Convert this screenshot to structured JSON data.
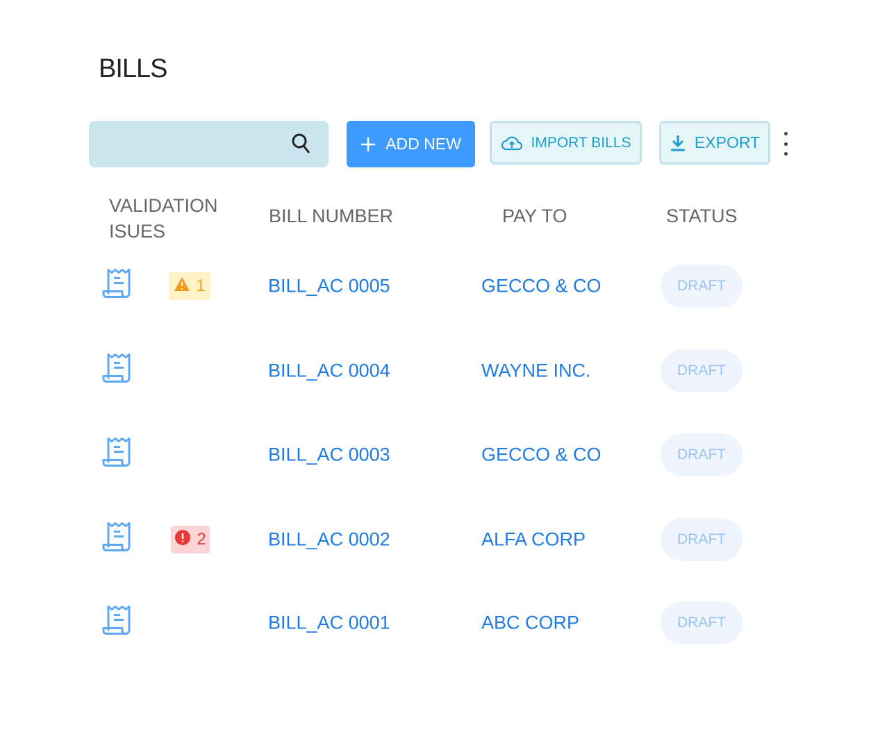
{
  "page": {
    "title": "BILLS"
  },
  "toolbar": {
    "search_value": "",
    "add_label": "ADD NEW",
    "import_label": "IMPORT BILLS",
    "export_label": "EXPORT"
  },
  "table": {
    "headers": {
      "validation": "VALIDATION ISUES",
      "bill_number": "BILL NUMBER",
      "pay_to": "PAY TO",
      "status": "STATUS"
    },
    "rows": [
      {
        "bill_number": "BILL_AC 0005",
        "pay_to": "GECCO & CO",
        "status": "DRAFT",
        "issue_type": "warning",
        "issue_count": "1"
      },
      {
        "bill_number": "BILL_AC 0004",
        "pay_to": "WAYNE INC.",
        "status": "DRAFT"
      },
      {
        "bill_number": "BILL_AC 0003",
        "pay_to": "GECCO & CO",
        "status": "DRAFT"
      },
      {
        "bill_number": "BILL_AC 0002",
        "pay_to": "ALFA CORP",
        "status": "DRAFT",
        "issue_type": "error",
        "issue_count": "2"
      },
      {
        "bill_number": "BILL_AC 0001",
        "pay_to": "ABC CORP",
        "status": "DRAFT"
      }
    ]
  },
  "colors": {
    "primary": "#3d9bff",
    "link": "#1f7be4",
    "warning": "#f59a1b",
    "error": "#e53935"
  }
}
